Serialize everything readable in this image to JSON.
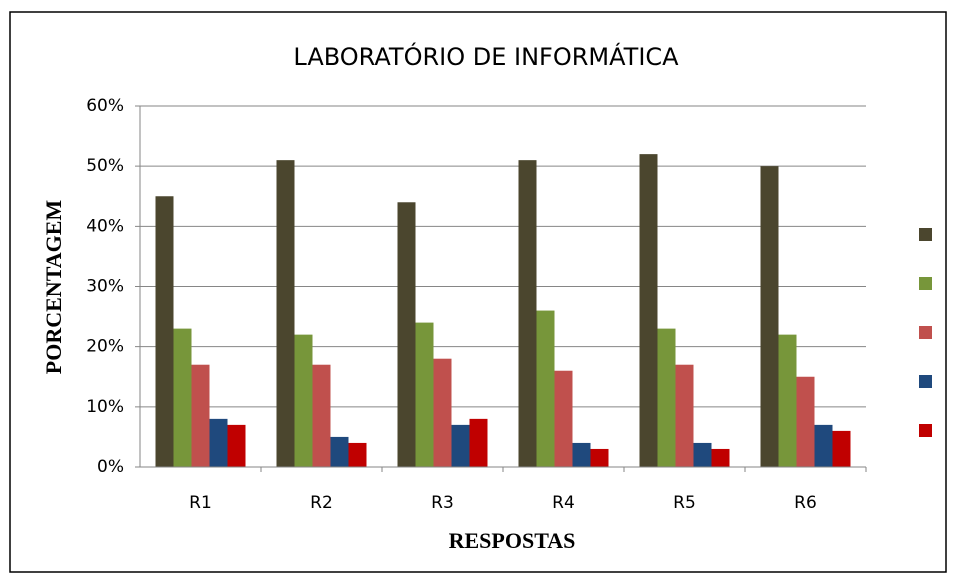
{
  "chart_data": {
    "type": "bar",
    "title": "LABORATÓRIO DE INFORMÁTICA",
    "x_label": "RESPOSTAS",
    "y_label": "PORCENTAGEM",
    "categories": [
      "R1",
      "R2",
      "R3",
      "R4",
      "R5",
      "R6"
    ],
    "series": [
      {
        "color": "#4b462e",
        "values": [
          45,
          51,
          44,
          51,
          52,
          50
        ]
      },
      {
        "color": "#77963a",
        "values": [
          23,
          22,
          24,
          26,
          23,
          22
        ]
      },
      {
        "color": "#c0504d",
        "values": [
          17,
          17,
          18,
          16,
          17,
          15
        ]
      },
      {
        "color": "#1f497d",
        "values": [
          8,
          5,
          7,
          4,
          4,
          7
        ]
      },
      {
        "color": "#c00000",
        "values": [
          7,
          4,
          8,
          3,
          3,
          6
        ]
      }
    ],
    "ylim": [
      0,
      60
    ],
    "yticks": [
      {
        "value": 0,
        "label": "0%"
      },
      {
        "value": 10,
        "label": "10%"
      },
      {
        "value": 20,
        "label": "20%"
      },
      {
        "value": 30,
        "label": "30%"
      },
      {
        "value": 40,
        "label": "40%"
      },
      {
        "value": 50,
        "label": "50%"
      },
      {
        "value": 60,
        "label": "60%"
      }
    ],
    "grid": true,
    "legend": "right"
  }
}
